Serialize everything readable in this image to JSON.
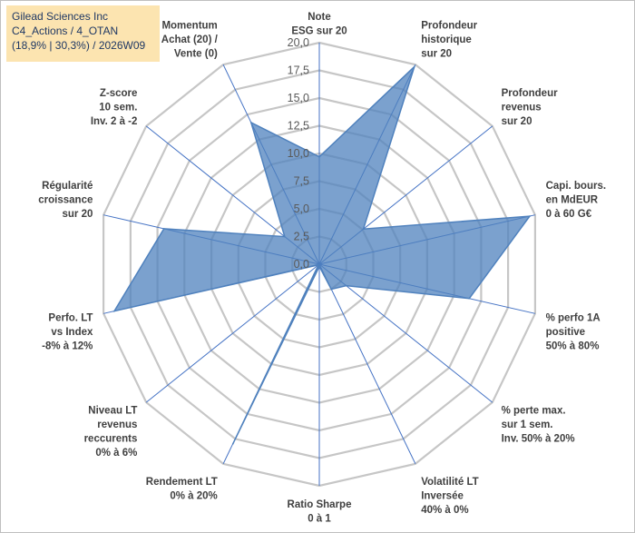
{
  "chart_data": {
    "type": "radar",
    "title_lines": [
      "Gilead Sciences Inc",
      "C4_Actions / 4_OTAN",
      "(18,9% | 30,3%) / 2026W09"
    ],
    "rmin": 0,
    "rmax": 20,
    "ticks": [
      0,
      2.5,
      5,
      7.5,
      10,
      12.5,
      15,
      17.5,
      20
    ],
    "tick_labels": [
      "0,0",
      "2,5",
      "5,0",
      "7,5",
      "10,0",
      "12,5",
      "15,0",
      "17,5",
      "20,0"
    ],
    "gridlines": true,
    "series": [
      {
        "name": "Gilead Sciences Inc",
        "color": "#4f81bd",
        "fill": "#4f81bd",
        "values": [
          9.7,
          19.8,
          5.1,
          19.5,
          13.9,
          3.1,
          2.5,
          0.2,
          18.0,
          0.1,
          19.0,
          14.4,
          4.0,
          14.2
        ]
      }
    ],
    "axes": [
      {
        "label": [
          "Note",
          "ESG sur 20"
        ]
      },
      {
        "label": [
          "Profondeur",
          "historique",
          "sur 20"
        ]
      },
      {
        "label": [
          "Profondeur",
          "revenus",
          "sur 20"
        ]
      },
      {
        "label": [
          "Capi. bours.",
          "en MdEUR",
          "0 à 60 G€"
        ]
      },
      {
        "label": [
          "% perfo 1A",
          "positive",
          "50% à 80%"
        ]
      },
      {
        "label": [
          "% perte max.",
          "sur 1 sem.",
          "Inv. 50% à 20%"
        ]
      },
      {
        "label": [
          "Volatilité LT",
          "Inversée",
          "40% à 0%"
        ]
      },
      {
        "label": [
          "Ratio Sharpe",
          "0 à 1"
        ]
      },
      {
        "label": [
          "Rendement LT",
          "0% à 20%"
        ]
      },
      {
        "label": [
          "Niveau LT",
          "revenus",
          "reccurents",
          "0% à 6%"
        ]
      },
      {
        "label": [
          "Perfo. LT",
          "vs Index",
          "-8% à 12%"
        ]
      },
      {
        "label": [
          "Régularité",
          "croissance",
          "sur 20"
        ]
      },
      {
        "label": [
          "Z-score",
          "10 sem.",
          "Inv. 2 à -2"
        ]
      },
      {
        "label": [
          "Momentum",
          "Achat (20) /",
          "Vente (0)"
        ]
      }
    ]
  }
}
